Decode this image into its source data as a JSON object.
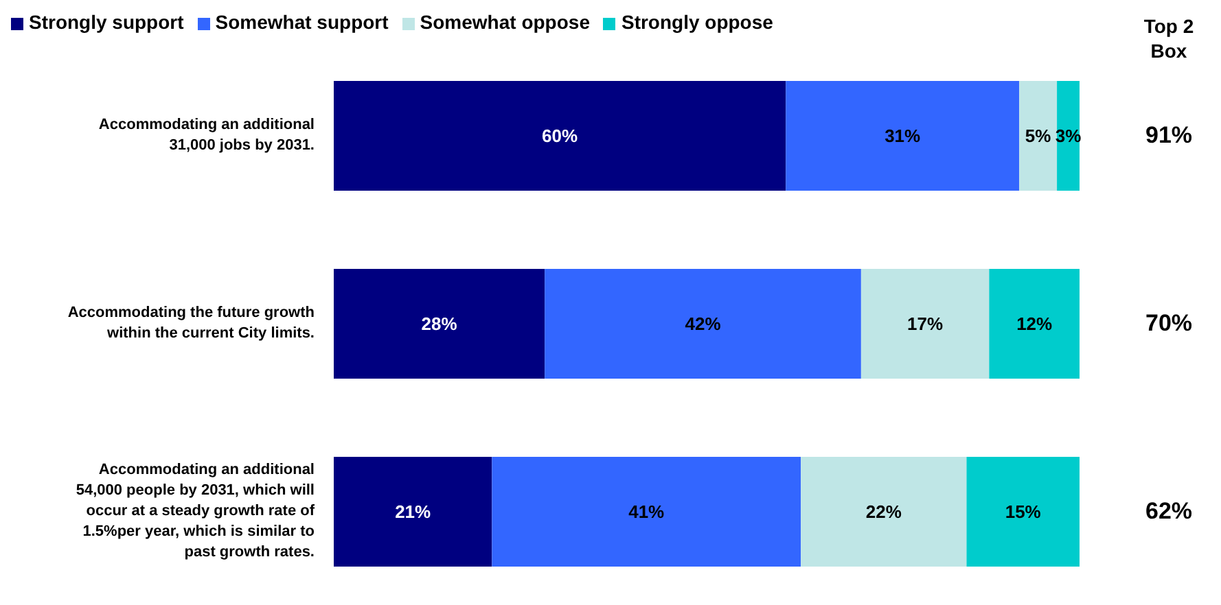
{
  "chart_data": {
    "type": "bar",
    "orientation": "horizontal",
    "stacked": true,
    "categories": [
      "Accommodating an additional 31,000 jobs by 2031.",
      "Accommodating the future growth within the current City limits.",
      "Accommodating an additional 54,000 people by 2031, which will occur at a steady growth rate of 1.5%per year, which is similar to past growth rates."
    ],
    "series": [
      {
        "name": "Strongly support",
        "color": "#000080",
        "values": [
          60,
          28,
          21
        ],
        "value_labels": [
          "60%",
          "28%",
          "21%"
        ]
      },
      {
        "name": "Somewhat support",
        "color": "#3366ff",
        "values": [
          31,
          42,
          41
        ],
        "value_labels": [
          "31%",
          "42%",
          "41%"
        ]
      },
      {
        "name": "Somewhat oppose",
        "color": "#bfe6e6",
        "values": [
          5,
          17,
          22
        ],
        "value_labels": [
          "5%",
          "17%",
          "22%"
        ]
      },
      {
        "name": "Strongly oppose",
        "color": "#00cccc",
        "values": [
          3,
          12,
          15
        ],
        "value_labels": [
          "3%",
          "12%",
          "15%"
        ]
      }
    ],
    "tick_labels": "y",
    "legend": "top",
    "grid": false,
    "annotations": [
      "Top 2 Box",
      "91%",
      "70%",
      "62%"
    ]
  }
}
